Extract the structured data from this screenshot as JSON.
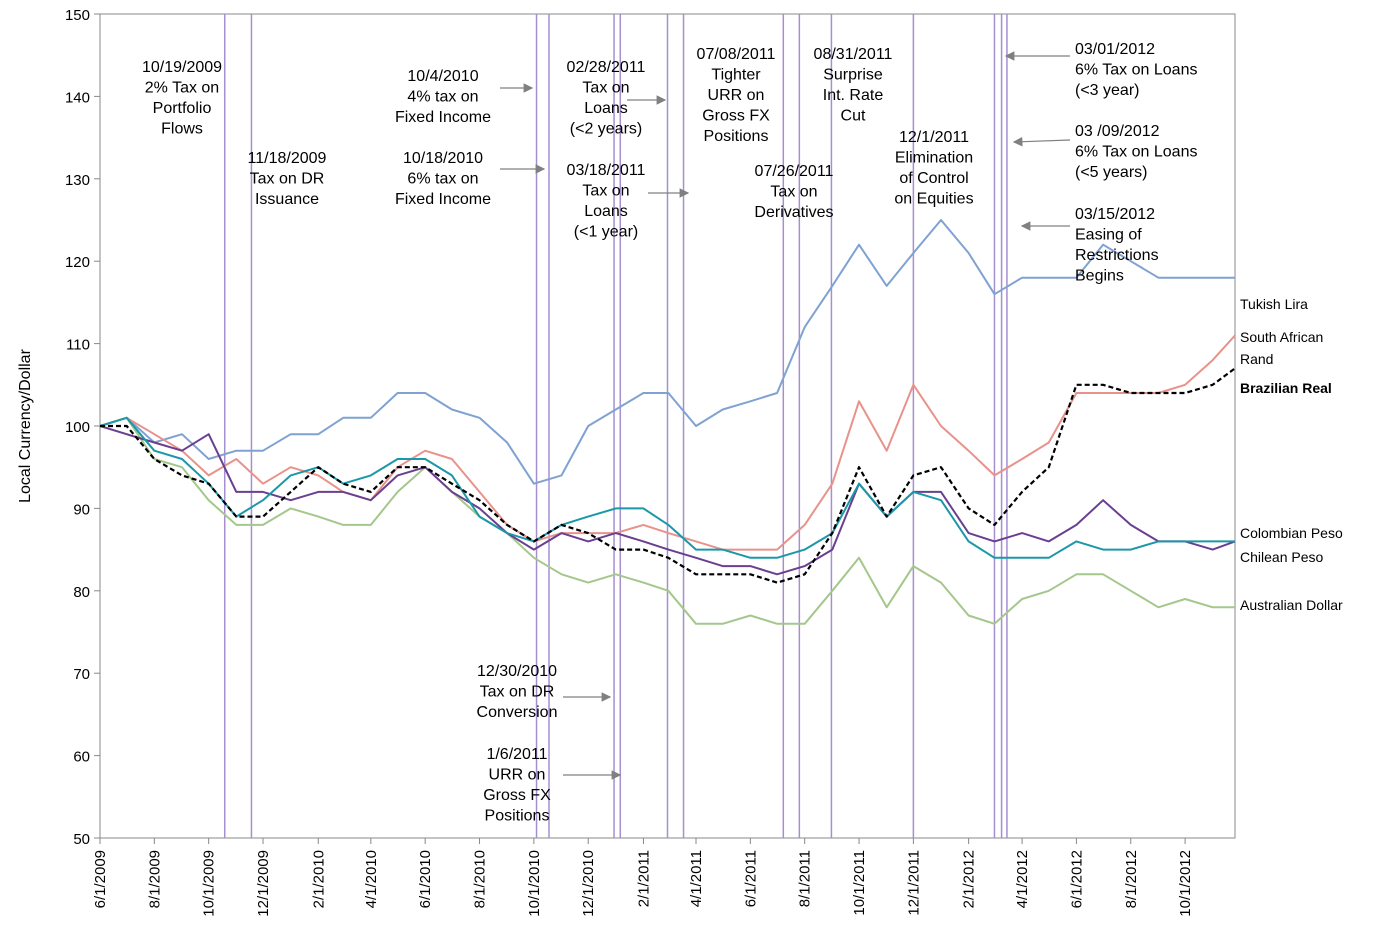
{
  "chart_data": {
    "type": "line",
    "y_label": "Local Currency/Dollar",
    "xlim": [
      "6/1/2009",
      "11/26/2012"
    ],
    "xticks": [
      "6/1/2009",
      "8/1/2009",
      "10/1/2009",
      "12/1/2009",
      "2/1/2010",
      "4/1/2010",
      "6/1/2010",
      "8/1/2010",
      "10/1/2010",
      "12/1/2010",
      "2/1/2011",
      "4/1/2011",
      "6/1/2011",
      "8/1/2011",
      "10/1/2011",
      "12/1/2011",
      "2/1/2012",
      "4/1/2012",
      "6/1/2012",
      "8/1/2012",
      "10/1/2012"
    ],
    "ylim": [
      50,
      150
    ],
    "yticks": [
      50,
      60,
      70,
      80,
      90,
      100,
      110,
      120,
      130,
      140,
      150
    ],
    "x": [
      "6/1/2009",
      "7/1/2009",
      "8/1/2009",
      "9/1/2009",
      "10/1/2009",
      "11/1/2009",
      "12/1/2009",
      "1/1/2010",
      "2/1/2010",
      "3/1/2010",
      "4/1/2010",
      "5/1/2010",
      "6/1/2010",
      "7/1/2010",
      "8/1/2010",
      "9/1/2010",
      "10/1/2010",
      "11/1/2010",
      "12/1/2010",
      "1/1/2011",
      "2/1/2011",
      "3/1/2011",
      "4/1/2011",
      "5/1/2011",
      "6/1/2011",
      "7/1/2011",
      "8/1/2011",
      "9/1/2011",
      "10/1/2011",
      "11/1/2011",
      "12/1/2011",
      "1/1/2012",
      "2/1/2012",
      "3/1/2012",
      "4/1/2012",
      "5/1/2012",
      "6/1/2012",
      "7/1/2012",
      "8/1/2012",
      "9/1/2012",
      "10/1/2012",
      "11/1/2012",
      "11/26/2012"
    ],
    "series": [
      {
        "name": "Tukish Lira",
        "color": "#7fa2d2",
        "values": [
          100,
          101,
          98,
          99,
          96,
          97,
          97,
          99,
          99,
          101,
          101,
          104,
          104,
          102,
          101,
          98,
          93,
          94,
          100,
          102,
          104,
          104,
          100,
          102,
          103,
          104,
          112,
          117,
          122,
          117,
          121,
          125,
          121,
          116,
          118,
          118,
          118,
          122,
          120,
          118,
          118,
          118,
          118
        ]
      },
      {
        "name": "South African Rand",
        "color": "#e8928b",
        "values": [
          100,
          101,
          99,
          97,
          94,
          96,
          93,
          95,
          94,
          92,
          91,
          95,
          97,
          96,
          92,
          88,
          86,
          87,
          87,
          87,
          88,
          87,
          86,
          85,
          85,
          85,
          88,
          93,
          103,
          97,
          105,
          100,
          97,
          94,
          96,
          98,
          104,
          104,
          104,
          104,
          105,
          108,
          111
        ]
      },
      {
        "name": "Brazilian Real",
        "color": "#000000",
        "dashed": true,
        "label_bold": true,
        "values": [
          100,
          100,
          96,
          94,
          93,
          89,
          89,
          92,
          95,
          93,
          92,
          95,
          95,
          93,
          91,
          88,
          86,
          88,
          87,
          85,
          85,
          84,
          82,
          82,
          82,
          81,
          82,
          87,
          95,
          89,
          94,
          95,
          90,
          88,
          92,
          95,
          105,
          105,
          104,
          104,
          104,
          105,
          107
        ]
      },
      {
        "name": "Colombian Peso",
        "color": "#1b98a8",
        "values": [
          100,
          101,
          97,
          96,
          93,
          89,
          91,
          94,
          95,
          93,
          94,
          96,
          96,
          94,
          89,
          87,
          86,
          88,
          89,
          90,
          90,
          88,
          85,
          85,
          84,
          84,
          85,
          87,
          93,
          89,
          92,
          91,
          86,
          84,
          84,
          84,
          86,
          85,
          85,
          86,
          86,
          86,
          86
        ]
      },
      {
        "name": "Chilean Peso",
        "color": "#6b3f90",
        "values": [
          100,
          99,
          98,
          97,
          99,
          92,
          92,
          91,
          92,
          92,
          91,
          94,
          95,
          92,
          90,
          87,
          85,
          87,
          86,
          87,
          86,
          85,
          84,
          83,
          83,
          82,
          83,
          85,
          93,
          89,
          92,
          92,
          87,
          86,
          87,
          86,
          88,
          91,
          88,
          86,
          86,
          85,
          86
        ]
      },
      {
        "name": "Australian Dollar",
        "color": "#a4c78b",
        "values": [
          100,
          101,
          96,
          95,
          91,
          88,
          88,
          90,
          89,
          88,
          88,
          92,
          95,
          92,
          89,
          87,
          84,
          82,
          81,
          82,
          81,
          80,
          76,
          76,
          77,
          76,
          76,
          80,
          84,
          78,
          83,
          81,
          77,
          76,
          79,
          80,
          82,
          82,
          80,
          78,
          79,
          78,
          78
        ]
      }
    ],
    "event_line_color": "#a68fcf",
    "events": [
      {
        "date": "10/19/2009",
        "lines": [
          "2% Tax on",
          "Portfolio",
          "Flows"
        ]
      },
      {
        "date": "11/18/2009",
        "lines": [
          "Tax on DR",
          "Issuance"
        ]
      },
      {
        "date": "10/4/2010",
        "lines": [
          "4% tax on",
          "Fixed Income"
        ]
      },
      {
        "date": "10/18/2010",
        "lines": [
          "6% tax on",
          "Fixed Income"
        ]
      },
      {
        "date": "12/30/2010",
        "lines": [
          "Tax on DR",
          "Conversion"
        ]
      },
      {
        "date": "1/6/2011",
        "lines": [
          "URR on",
          "Gross FX",
          "Positions"
        ]
      },
      {
        "date": "02/28/2011",
        "lines": [
          "Tax on",
          "Loans",
          "(<2 years)"
        ]
      },
      {
        "date": "03/18/2011",
        "lines": [
          "Tax on",
          "Loans",
          "(<1 year)"
        ]
      },
      {
        "date": "07/08/2011",
        "lines": [
          "Tighter",
          "URR on",
          "Gross FX",
          "Positions"
        ]
      },
      {
        "date": "07/26/2011",
        "lines": [
          "Tax on",
          "Derivatives"
        ]
      },
      {
        "date": "08/31/2011",
        "lines": [
          "Surprise",
          "Int. Rate",
          "Cut"
        ]
      },
      {
        "date": "12/1/2011",
        "lines": [
          "Elimination",
          "of Control",
          "on Equities"
        ]
      },
      {
        "date": "03/01/2012",
        "lines": [
          "6% Tax on Loans",
          "(<3 year)"
        ]
      },
      {
        "date": "03 /09/2012",
        "lines": [
          "6% Tax on Loans",
          "(<5 years)"
        ]
      },
      {
        "date": "03/15/2012",
        "lines": [
          "Easing of",
          "Restrictions",
          "Begins"
        ]
      }
    ]
  }
}
